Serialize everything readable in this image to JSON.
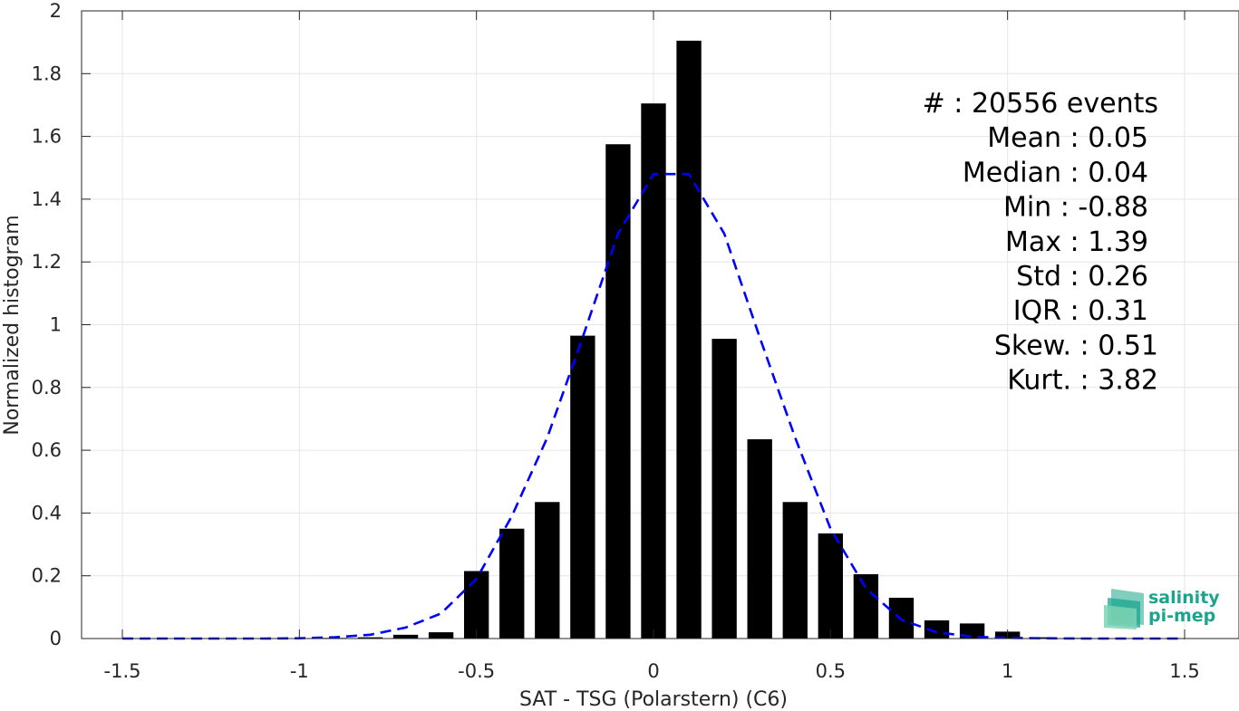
{
  "chart_data": {
    "type": "bar",
    "title": "",
    "xlabel": "SAT - TSG (Polarstern) (C6)",
    "ylabel": "Normalized histogram",
    "xlim": [
      -1.5,
      1.5
    ],
    "ylim": [
      0,
      2
    ],
    "grid": true,
    "x_ticks": [
      "-1.5",
      "-1",
      "-0.5",
      "0",
      "0.5",
      "1",
      "1.5"
    ],
    "y_ticks": [
      "0",
      "0.2",
      "0.4",
      "0.6",
      "0.8",
      "1",
      "1.2",
      "1.4",
      "1.6",
      "1.8",
      "2"
    ],
    "bin_width": 0.1,
    "bars": {
      "x": [
        -1.4,
        -1.3,
        -1.2,
        -1.1,
        -1.0,
        -0.9,
        -0.8,
        -0.7,
        -0.6,
        -0.5,
        -0.4,
        -0.3,
        -0.2,
        -0.1,
        0.0,
        0.1,
        0.2,
        0.3,
        0.4,
        0.5,
        0.6,
        0.7,
        0.8,
        0.9,
        1.0,
        1.1,
        1.2,
        1.3,
        1.4
      ],
      "values": [
        0,
        0,
        0,
        0,
        0,
        0.002,
        0.004,
        0.012,
        0.02,
        0.215,
        0.35,
        0.435,
        0.965,
        1.575,
        1.705,
        1.905,
        0.955,
        0.635,
        0.435,
        0.335,
        0.205,
        0.13,
        0.058,
        0.048,
        0.022,
        0.004,
        0.002,
        0,
        0
      ],
      "color": "#000000"
    },
    "fit_curve": {
      "style": "dashed",
      "color": "#0000ff",
      "x": [
        -1.5,
        -1.4,
        -1.3,
        -1.2,
        -1.1,
        -1.0,
        -0.9,
        -0.8,
        -0.7,
        -0.6,
        -0.5,
        -0.4,
        -0.3,
        -0.2,
        -0.1,
        0.0,
        0.1,
        0.2,
        0.3,
        0.4,
        0.5,
        0.6,
        0.7,
        0.8,
        0.9,
        1.0,
        1.1,
        1.2,
        1.3,
        1.4,
        1.5
      ],
      "y": [
        0,
        0,
        0,
        0,
        0,
        0.001,
        0.004,
        0.012,
        0.035,
        0.08,
        0.19,
        0.39,
        0.64,
        0.96,
        1.29,
        1.48,
        1.48,
        1.29,
        0.96,
        0.64,
        0.35,
        0.16,
        0.06,
        0.02,
        0.006,
        0.002,
        0.001,
        0,
        0,
        0,
        0
      ]
    },
    "stats": [
      {
        "label": "#  : 20556 events"
      },
      {
        "label": "Mean : 0.05"
      },
      {
        "label": "Median : 0.04"
      },
      {
        "label": "Min : -0.88"
      },
      {
        "label": "Max : 1.39"
      },
      {
        "label": "Std : 0.26"
      },
      {
        "label": "IQR : 0.31"
      },
      {
        "label": "Skew. : 0.51"
      },
      {
        "label": "Kurt. : 3.82"
      }
    ]
  },
  "logo": {
    "line1": "salinity",
    "line2": "pi-mep",
    "icon": "salinity-pimep-logo-icon",
    "colors": [
      "#1aa58c",
      "#7dd3b5"
    ]
  }
}
